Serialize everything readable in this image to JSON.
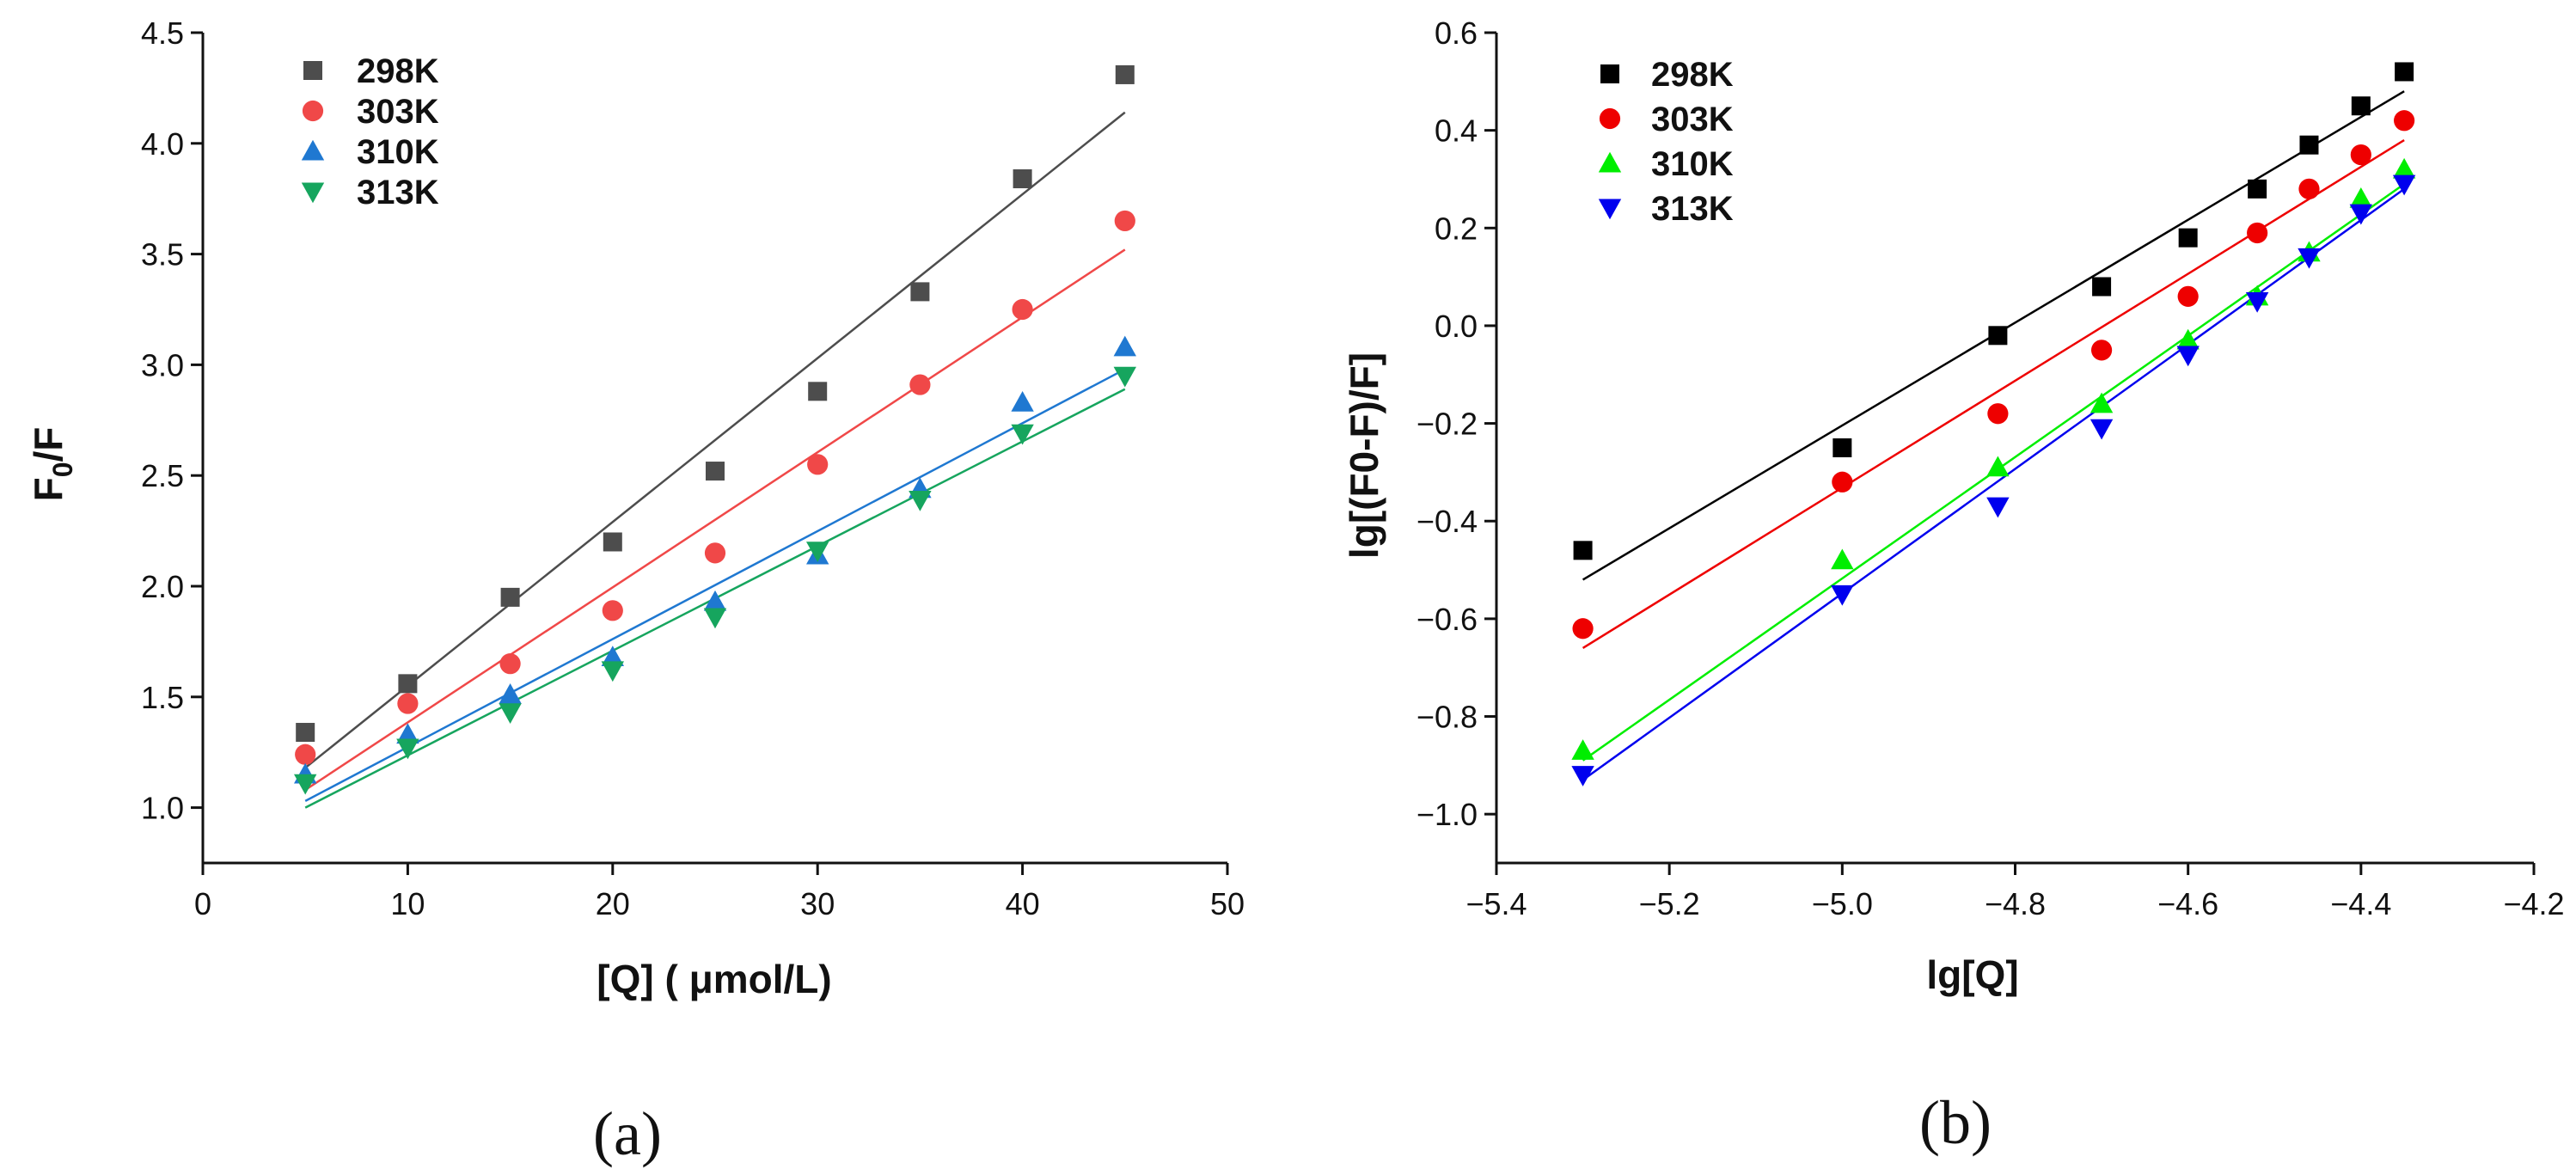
{
  "chart_data": [
    {
      "type": "scatter",
      "panel_label": "(a)",
      "title": "",
      "xlabel": "[Q] ( μmol/L)",
      "ylabel_main": "F",
      "ylabel_sub": "0",
      "ylabel_tail": "/F",
      "xlim": [
        0,
        50
      ],
      "ylim": [
        0.75,
        4.5
      ],
      "xticks": [
        "0",
        "10",
        "20",
        "30",
        "40",
        "50"
      ],
      "yticks": [
        "1.0",
        "1.5",
        "2.0",
        "2.5",
        "3.0",
        "3.5",
        "4.0",
        "4.5"
      ],
      "grid": false,
      "legend_position": "top-left",
      "x": [
        5,
        10,
        15,
        20,
        25,
        30,
        35,
        40,
        45
      ],
      "series": [
        {
          "name": "298K",
          "marker": "square",
          "color": "#4d4d4d",
          "values": [
            1.34,
            1.56,
            1.95,
            2.2,
            2.52,
            2.88,
            3.33,
            3.84,
            4.31
          ],
          "fit": [
            1.18,
            4.14
          ]
        },
        {
          "name": "303K",
          "marker": "circle",
          "color": "#f04848",
          "values": [
            1.24,
            1.47,
            1.65,
            1.89,
            2.15,
            2.55,
            2.91,
            3.25,
            3.65
          ],
          "fit": [
            1.08,
            3.52
          ]
        },
        {
          "name": "310K",
          "marker": "triangle-up",
          "color": "#1f78d1",
          "values": [
            1.15,
            1.33,
            1.51,
            1.68,
            1.93,
            2.14,
            2.44,
            2.83,
            3.08
          ],
          "fit": [
            1.03,
            2.98
          ]
        },
        {
          "name": "313K",
          "marker": "triangle-down",
          "color": "#16a55e",
          "values": [
            1.11,
            1.27,
            1.43,
            1.62,
            1.86,
            2.16,
            2.39,
            2.69,
            2.95
          ],
          "fit": [
            1.0,
            2.89
          ]
        }
      ]
    },
    {
      "type": "scatter",
      "panel_label": "(b)",
      "title": "",
      "xlabel": "lg[Q]",
      "ylabel": "lg[(F0-F)/F]",
      "xlim": [
        -5.4,
        -4.2
      ],
      "ylim": [
        -1.1,
        0.6
      ],
      "xticks": [
        "−5.4",
        "−5.2",
        "−5.0",
        "−4.8",
        "−4.6",
        "−4.4",
        "−4.2"
      ],
      "yticks": [
        "−1.0",
        "−0.8",
        "−0.6",
        "−0.4",
        "−0.2",
        "0.0",
        "0.2",
        "0.4",
        "0.6"
      ],
      "grid": false,
      "legend_position": "top-left",
      "x": [
        -5.3,
        -5.0,
        -4.82,
        -4.7,
        -4.6,
        -4.52,
        -4.46,
        -4.4,
        -4.35
      ],
      "series": [
        {
          "name": "298K",
          "marker": "square",
          "color": "#000000",
          "values": [
            -0.46,
            -0.25,
            -0.02,
            0.08,
            0.18,
            0.28,
            0.37,
            0.45,
            0.52
          ],
          "fit": [
            -0.52,
            0.48
          ]
        },
        {
          "name": "303K",
          "marker": "circle",
          "color": "#ee0000",
          "values": [
            -0.62,
            -0.32,
            -0.18,
            -0.05,
            0.06,
            0.19,
            0.28,
            0.35,
            0.42
          ],
          "fit": [
            -0.66,
            0.38
          ]
        },
        {
          "name": "310K",
          "marker": "triangle-up",
          "color": "#00ee00",
          "values": [
            -0.87,
            -0.48,
            -0.29,
            -0.16,
            -0.03,
            0.06,
            0.15,
            0.26,
            0.32
          ],
          "fit": [
            -0.89,
            0.29
          ]
        },
        {
          "name": "313K",
          "marker": "triangle-down",
          "color": "#0000ee",
          "values": [
            -0.92,
            -0.55,
            -0.37,
            -0.21,
            -0.06,
            0.05,
            0.14,
            0.23,
            0.29
          ],
          "fit": [
            -0.93,
            0.28
          ]
        }
      ]
    }
  ]
}
